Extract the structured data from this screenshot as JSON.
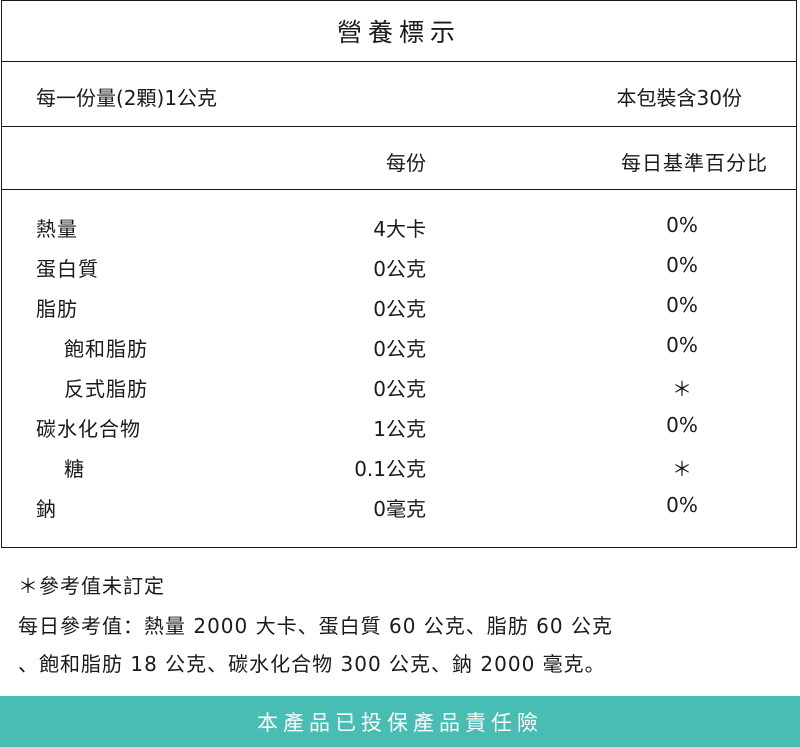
{
  "table": {
    "title": "營養標示",
    "serving_size": "每一份量(2顆)1公克",
    "servings_per_package": "本包裝含30份",
    "header_per_serving": "每份",
    "header_daily_value": "每日基準百分比",
    "rows": [
      {
        "name": "熱量",
        "amount": "4大卡",
        "dv": "0%"
      },
      {
        "name": "蛋白質",
        "amount": "0公克",
        "dv": "0%"
      },
      {
        "name": "脂肪",
        "amount": "0公克",
        "dv": "0%"
      },
      {
        "name": "飽和脂肪",
        "amount": "0公克",
        "dv": "0%"
      },
      {
        "name": "反式脂肪",
        "amount": "0公克",
        "dv": "＊"
      },
      {
        "name": "碳水化合物",
        "amount": "1公克",
        "dv": "0%"
      },
      {
        "name": "糖",
        "amount": "0.1公克",
        "dv": "＊"
      },
      {
        "name": "鈉",
        "amount": "0毫克",
        "dv": "0%"
      }
    ]
  },
  "notes": {
    "asterisk_note": "＊參考值未訂定",
    "reference_line1": "每日參考值：熱量 2000 大卡、蛋白質 60 公克、脂肪 60 公克",
    "reference_line2": "、飽和脂肪 18 公克、碳水化合物 300 公克、鈉 2000 毫克。"
  },
  "footer": {
    "text": "本產品已投保產品責任險",
    "background_color": "#48bdb3"
  }
}
